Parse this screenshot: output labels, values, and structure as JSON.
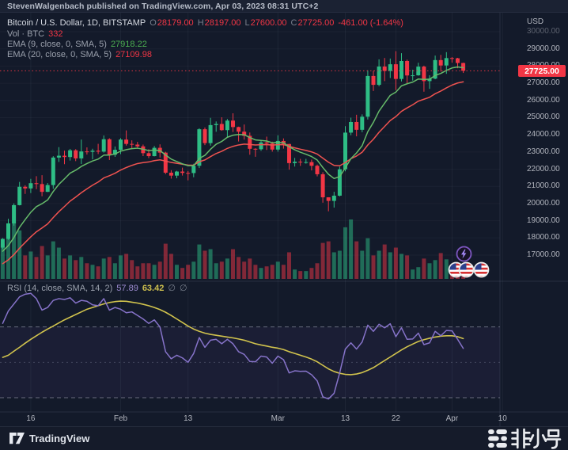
{
  "banner": {
    "text": "StevenWalgenbach published on TradingView.com, Apr 03, 2023 08:31 UTC+2"
  },
  "symbol_row": {
    "title": "Bitcoin / U.S. Dollar, 1D, BITSTAMP",
    "o_label": "O",
    "o": "28179.00",
    "h_label": "H",
    "h": "28197.00",
    "l_label": "L",
    "l": "27600.00",
    "c_label": "C",
    "c": "27725.00",
    "change": "-461.00 (-1.64%)"
  },
  "volume_row": {
    "label": "Vol · BTC",
    "value": "332"
  },
  "ema9_row": {
    "label": "EMA (9, close, 0, SMA, 5)",
    "value": "27918.22"
  },
  "ema20_row": {
    "label": "EMA (20, close, 0, SMA, 5)",
    "value": "27109.98"
  },
  "rsi_row": {
    "label": "RSI (14, close, SMA, 14, 2)",
    "value1": "57.89",
    "value2": "63.42",
    "empty1": "∅",
    "empty2": "∅"
  },
  "price_axis": {
    "unit": "USD",
    "last_price": "27725.00",
    "ticks": [
      {
        "label": "30000.00",
        "value": 30000,
        "faded": true
      },
      {
        "label": "29000.00",
        "value": 29000
      },
      {
        "label": "28000.00",
        "value": 28000
      },
      {
        "label": "27000.00",
        "value": 27000
      },
      {
        "label": "26000.00",
        "value": 26000
      },
      {
        "label": "25000.00",
        "value": 25000
      },
      {
        "label": "24000.00",
        "value": 24000
      },
      {
        "label": "23000.00",
        "value": 23000
      },
      {
        "label": "22000.00",
        "value": 22000
      },
      {
        "label": "21000.00",
        "value": 21000
      },
      {
        "label": "20000.00",
        "value": 20000
      },
      {
        "label": "19000.00",
        "value": 19000
      },
      {
        "label": "18000.00",
        "value": 18000
      },
      {
        "label": "17000.00",
        "value": 17000
      }
    ]
  },
  "time_axis": {
    "ticks": [
      {
        "label": "16",
        "index": 5
      },
      {
        "label": "Feb",
        "index": 21
      },
      {
        "label": "13",
        "index": 33
      },
      {
        "label": "Mar",
        "index": 49
      },
      {
        "label": "13",
        "index": 61
      },
      {
        "label": "22",
        "index": 70
      },
      {
        "label": "Apr",
        "index": 80
      },
      {
        "label": "10",
        "index": 89
      }
    ]
  },
  "footer": {
    "brand": "TradingView",
    "watermark": "非小号"
  },
  "colors": {
    "up": "#2ebd85",
    "down": "#f23645",
    "ema9": "#66bb6a",
    "ema20": "#ef5350",
    "rsi": "#8673c9",
    "rsi_ma": "#d1c34d",
    "accent_red": "#f23645",
    "band": "rgba(126,87,194,0.08)"
  },
  "chart_data": {
    "type": "candlestick",
    "symbol": "Bitcoin / U.S. Dollar",
    "interval": "1D",
    "exchange": "BITSTAMP",
    "price_range": [
      17000,
      30000
    ],
    "rsi_levels": [
      30,
      50,
      70
    ],
    "last_price": 27725,
    "ema_seed": [
      17050,
      16350
    ],
    "candles": [
      [
        17436,
        17990,
        17340,
        17943
      ],
      [
        17943,
        19117,
        17892,
        18846
      ],
      [
        18846,
        20010,
        18715,
        19909
      ],
      [
        19909,
        21258,
        19892,
        20976
      ],
      [
        20976,
        21065,
        20561,
        20880
      ],
      [
        20880,
        21438,
        20611,
        21185
      ],
      [
        21185,
        21594,
        20836,
        21134
      ],
      [
        21134,
        21650,
        20425,
        20681
      ],
      [
        20681,
        21192,
        20671,
        21076
      ],
      [
        21076,
        22755,
        20861,
        22676
      ],
      [
        22676,
        23282,
        22422,
        22783
      ],
      [
        22783,
        23078,
        22292,
        22707
      ],
      [
        22707,
        23180,
        22500,
        23098
      ],
      [
        23098,
        23165,
        22470,
        22627
      ],
      [
        22627,
        23722,
        22301,
        23032
      ],
      [
        23032,
        23268,
        22850,
        23009
      ],
      [
        23009,
        23189,
        22571,
        23074
      ],
      [
        23074,
        23474,
        22879,
        23022
      ],
      [
        23022,
        23960,
        22963,
        23742
      ],
      [
        23742,
        23800,
        22533,
        22840
      ],
      [
        22840,
        23320,
        22716,
        23125
      ],
      [
        23125,
        23804,
        22880,
        23723
      ],
      [
        23723,
        24255,
        23373,
        23471
      ],
      [
        23471,
        23678,
        23225,
        23431
      ],
      [
        23431,
        23588,
        23259,
        23327
      ],
      [
        23327,
        23433,
        22762,
        22932
      ],
      [
        22932,
        23158,
        22648,
        22760
      ],
      [
        22760,
        23349,
        22745,
        23243
      ],
      [
        23243,
        23445,
        22678,
        22963
      ],
      [
        22963,
        23011,
        21712,
        21796
      ],
      [
        21796,
        21938,
        21451,
        21625
      ],
      [
        21625,
        21906,
        21474,
        21862
      ],
      [
        21862,
        22090,
        21629,
        21783
      ],
      [
        21783,
        21894,
        21351,
        21774
      ],
      [
        21774,
        22313,
        21531,
        22199
      ],
      [
        22199,
        24380,
        22065,
        24324
      ],
      [
        24324,
        24425,
        23404,
        23517
      ],
      [
        23517,
        24987,
        23367,
        24565
      ],
      [
        24565,
        24777,
        24178,
        24631
      ],
      [
        24631,
        25021,
        24232,
        24272
      ],
      [
        24272,
        24920,
        23857,
        24827
      ],
      [
        24827,
        25250,
        24160,
        24452
      ],
      [
        24452,
        24474,
        23612,
        24182
      ],
      [
        24182,
        24600,
        23721,
        23941
      ],
      [
        23941,
        24132,
        22841,
        23186
      ],
      [
        23186,
        23219,
        22722,
        23159
      ],
      [
        23159,
        23689,
        23066,
        23556
      ],
      [
        23556,
        23894,
        23116,
        23492
      ],
      [
        23492,
        23600,
        23020,
        23141
      ],
      [
        23141,
        23971,
        23020,
        23642
      ],
      [
        23642,
        23790,
        23195,
        23464
      ],
      [
        23464,
        23476,
        21971,
        22354
      ],
      [
        22354,
        22656,
        22152,
        22435
      ],
      [
        22435,
        22601,
        22189,
        22410
      ],
      [
        22410,
        22602,
        22322,
        22411
      ],
      [
        22411,
        22556,
        21927,
        22197
      ],
      [
        22197,
        22266,
        21580,
        21705
      ],
      [
        21705,
        21822,
        20050,
        20363
      ],
      [
        20363,
        20367,
        19549,
        20155
      ],
      [
        20155,
        20686,
        19765,
        20458
      ],
      [
        20458,
        22150,
        20415,
        21995
      ],
      [
        21995,
        24500,
        21876,
        24127
      ],
      [
        24127,
        24998,
        23976,
        24746
      ],
      [
        24746,
        25167,
        23911,
        24291
      ],
      [
        24291,
        25189,
        24151,
        25052
      ],
      [
        25052,
        27756,
        24890,
        27423
      ],
      [
        27423,
        27728,
        26550,
        26907
      ],
      [
        26907,
        28390,
        26827,
        27972
      ],
      [
        27972,
        28472,
        27124,
        27717
      ],
      [
        27717,
        28438,
        27303,
        28105
      ],
      [
        28105,
        28868,
        26601,
        27250
      ],
      [
        27250,
        28750,
        27105,
        28295
      ],
      [
        28295,
        28374,
        27000,
        27454
      ],
      [
        27454,
        27787,
        27156,
        27462
      ],
      [
        27462,
        28194,
        27438,
        27968
      ],
      [
        27968,
        28023,
        26508,
        27124
      ],
      [
        27124,
        27462,
        26676,
        27268
      ],
      [
        27268,
        28609,
        27232,
        28348
      ],
      [
        28348,
        28650,
        27678,
        28033
      ],
      [
        28033,
        28810,
        27550,
        28465
      ],
      [
        28465,
        28520,
        28200,
        28454
      ],
      [
        28454,
        28480,
        27875,
        28179
      ],
      [
        28179,
        28197,
        27600,
        27725
      ]
    ],
    "volume_rel": [
      45,
      60,
      72,
      62,
      30,
      35,
      28,
      42,
      30,
      48,
      40,
      26,
      30,
      24,
      28,
      20,
      18,
      16,
      26,
      28,
      20,
      30,
      32,
      24,
      16,
      20,
      20,
      18,
      22,
      45,
      32,
      18,
      14,
      18,
      22,
      44,
      36,
      38,
      20,
      22,
      26,
      38,
      28,
      22,
      26,
      18,
      14,
      16,
      18,
      22,
      18,
      34,
      12,
      10,
      10,
      14,
      20,
      46,
      48,
      34,
      36,
      66,
      76,
      48,
      36,
      52,
      30,
      36,
      44,
      34,
      40,
      32,
      30,
      12,
      15,
      26,
      20,
      24,
      33,
      25,
      10,
      15,
      8
    ],
    "rsi": [
      72,
      79,
      83,
      87,
      88.5,
      89,
      86,
      79.5,
      81,
      85,
      86,
      85.5,
      86.5,
      83.5,
      85,
      84.5,
      82.5,
      82,
      86,
      79.5,
      81,
      80,
      78,
      78.5,
      76.5,
      74.5,
      72,
      74,
      70,
      56,
      52,
      54,
      52.5,
      50,
      55,
      64,
      58.5,
      62.5,
      63,
      60.5,
      63,
      60.5,
      56,
      54.5,
      50.5,
      50.3,
      53.5,
      53,
      49.5,
      53.5,
      51.5,
      44,
      45.2,
      44.9,
      45,
      43,
      39.5,
      30.5,
      29.3,
      32.5,
      44,
      57.5,
      61,
      57.5,
      61.5,
      71,
      67.5,
      71.5,
      69.5,
      71.8,
      64.5,
      69.5,
      63,
      63.2,
      66.5,
      60,
      61,
      67.5,
      65,
      68,
      67.8,
      63,
      57.89
    ],
    "rsi_ma": [
      52.8,
      54,
      56.3,
      58.5,
      60.8,
      63,
      65,
      67,
      68.8,
      70.5,
      72.3,
      74,
      75.5,
      77,
      78.5,
      80,
      81,
      82,
      83,
      83.8,
      84.3,
      84.6,
      84.5,
      84,
      83.5,
      82.8,
      82,
      81,
      79.8,
      78.3,
      76.5,
      74.5,
      72.5,
      70.5,
      68.8,
      67.5,
      66.5,
      65.8,
      65.3,
      64.8,
      64.3,
      63.8,
      63.2,
      62.5,
      61.5,
      60.5,
      59.8,
      59.2,
      58.5,
      58,
      57.2,
      56,
      55,
      54,
      53,
      51.8,
      50.3,
      48.3,
      46.3,
      44.8,
      43.8,
      43.2,
      43,
      43.4,
      44.2,
      45.5,
      47,
      49,
      51,
      53,
      55,
      57,
      58.8,
      60.3,
      61.8,
      62.8,
      63.6,
      64.3,
      64.8,
      65,
      65,
      64.5,
      63.42
    ]
  }
}
